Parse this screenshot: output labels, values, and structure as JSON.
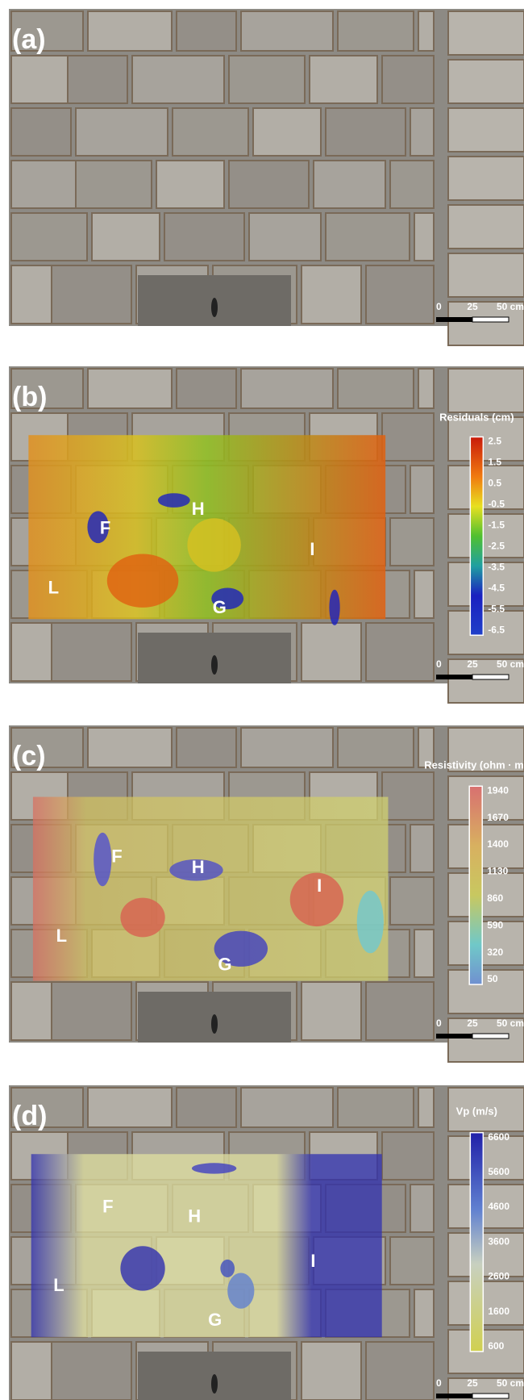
{
  "panels": [
    {
      "label": "(a)",
      "scale_bar": [
        "0",
        "25",
        "50 cm"
      ]
    },
    {
      "label": "(b)",
      "scale_bar": [
        "0",
        "25",
        "50 cm"
      ],
      "colorbar": {
        "title": "Residuals (cm)",
        "ticks": [
          "2.5",
          "1.5",
          "0.5",
          "-0.5",
          "-1.5",
          "-2.5",
          "-3.5",
          "-4.5",
          "-5.5",
          "-6.5"
        ]
      },
      "annotations": [
        "F",
        "H",
        "I",
        "L",
        "G"
      ]
    },
    {
      "label": "(c)",
      "scale_bar": [
        "0",
        "25",
        "50 cm"
      ],
      "colorbar": {
        "title": "Resistivity (ohm · m)",
        "ticks": [
          "1940",
          "1670",
          "1400",
          "1130",
          "860",
          "590",
          "320",
          "50"
        ]
      },
      "annotations": [
        "F",
        "H",
        "I",
        "L",
        "G"
      ]
    },
    {
      "label": "(d)",
      "scale_bar": [
        "0",
        "25",
        "50 cm"
      ],
      "colorbar": {
        "title": "Vp (m/s)",
        "ticks": [
          "6600",
          "5600",
          "4600",
          "3600",
          "2600",
          "1600",
          "600"
        ]
      },
      "annotations": [
        "F",
        "H",
        "I",
        "L",
        "G"
      ]
    }
  ]
}
